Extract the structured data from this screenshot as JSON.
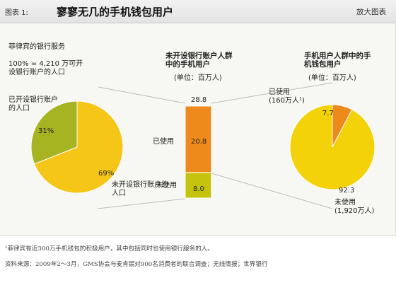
{
  "header": {
    "figure_label": "图表 1:",
    "title": "寥寥无几的手机钱包用户",
    "enlarge_label": "放大图表"
  },
  "colors": {
    "banked": "#a7b422",
    "unbanked": "#f5c518",
    "orange": "#ee8a1c",
    "yellow": "#f3d20a",
    "olive": "#c5c30e"
  },
  "chart_data": [
    {
      "type": "pie",
      "title": "菲律宾的银行服务",
      "subtitle": "100% = 4,210 万可开设银行账户的人口",
      "slices": [
        {
          "label": "已开设银行账户的人口",
          "value": 31,
          "value_label": "31%"
        },
        {
          "label": "未开设银行账户的人口",
          "value": 69,
          "value_label": "69%"
        }
      ]
    },
    {
      "type": "bar",
      "title": "未开设银行账户人群中的手机用户",
      "unit": "(单位：百万人)",
      "total": 28.8,
      "total_label": "28.8",
      "series": [
        {
          "name": "已使用",
          "value": 20.8,
          "value_label": "20.8"
        },
        {
          "name": "未使用",
          "value": 8.0,
          "value_label": "8.0"
        }
      ]
    },
    {
      "type": "pie",
      "title": "手机用户人群中的手机钱包用户",
      "unit": "(单位：百万人)",
      "slices": [
        {
          "label": "已使用",
          "value": 7.7,
          "value_label": "7.7",
          "note": "(160万人¹)"
        },
        {
          "label": "未使用",
          "value": 92.3,
          "value_label": "92.3",
          "note": "(1,920万人)"
        }
      ]
    }
  ],
  "footer": {
    "footnote": "¹菲律宾有近300万手机钱包的积极用户，其中包括同时也使用银行服务的人。",
    "source": "资料来源：2009年2～3月，GMS协会与麦肯锡对900名消费者的联合调查；无线情报；世界银行"
  }
}
